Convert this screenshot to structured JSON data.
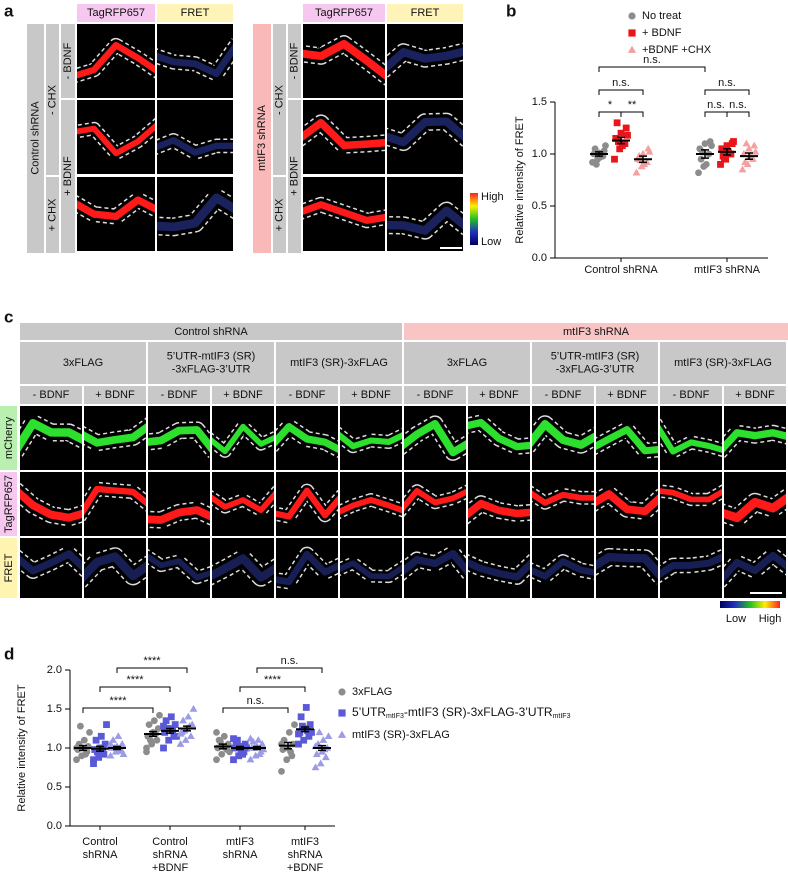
{
  "figure": {
    "panel_a": {
      "label": "a",
      "channels": [
        "TagRFP657",
        "FRET"
      ],
      "blocks": [
        {
          "name": "Control shRNA",
          "chx": [
            "- CHX",
            "+ CHX"
          ],
          "bdnf": [
            "- BDNF",
            "+ BDNF"
          ]
        },
        {
          "name": "mtIF3 shRNA",
          "chx": [
            "- CHX",
            "+ CHX"
          ],
          "bdnf": [
            "- BDNF",
            "+ BDNF"
          ]
        }
      ],
      "colorbar": [
        "High",
        "Low"
      ]
    },
    "panel_c": {
      "label": "c",
      "groups": [
        "Control shRNA",
        "mtIF3 shRNA"
      ],
      "constructs": [
        [
          "3xFLAG"
        ],
        [
          "5’UTR-mtIF3 (SR)",
          "-3xFLAG-3’UTR"
        ],
        [
          "mtIF3 (SR)-3xFLAG"
        ]
      ],
      "conditions": [
        "- BDNF",
        "+ BDNF"
      ],
      "channels": [
        "mCherry",
        "TagRFP657",
        "FRET"
      ],
      "colorbar": [
        "Low",
        "High"
      ]
    }
  },
  "chart_data": [
    {
      "type": "dot",
      "panel": "b",
      "ylabel": "Relative intensity of FRET",
      "categories": [
        "Control shRNA",
        "mtIF3 shRNA"
      ],
      "ylim": [
        0,
        1.5
      ],
      "yticks": [
        {
          "value": 0,
          "label": "0.0"
        },
        {
          "value": 0.5,
          "label": "0.5"
        },
        {
          "value": 1,
          "label": "1.0"
        },
        {
          "value": 1.5,
          "label": "1.5"
        }
      ],
      "series": [
        {
          "name": "No treat",
          "color": "#8c8c8c",
          "marker": "circle",
          "values": [
            1.0,
            1.0
          ],
          "errors": [
            0.02,
            0.04
          ],
          "points": [
            [
              0.92,
              0.95,
              0.98,
              1.0,
              1.01,
              1.03,
              1.05,
              0.97,
              1.08,
              0.9
            ],
            [
              0.82,
              0.88,
              1.0,
              1.05,
              1.1,
              1.12,
              0.95,
              0.9,
              1.08,
              1.02
            ]
          ]
        },
        {
          "name": "+ BDNF",
          "color": "#e8151b",
          "marker": "square",
          "values": [
            1.13,
            1.02
          ],
          "errors": [
            0.03,
            0.03
          ],
          "points": [
            [
              0.95,
              1.05,
              1.1,
              1.15,
              1.2,
              1.25,
              1.3,
              1.08,
              1.18,
              1.12
            ],
            [
              0.9,
              0.95,
              1.0,
              1.05,
              1.08,
              1.1,
              0.98,
              1.02,
              1.12,
              0.96
            ]
          ]
        },
        {
          "name": "+BDNF +CHX",
          "color": "#f4a0a0",
          "marker": "triangle",
          "values": [
            0.95,
            0.98
          ],
          "errors": [
            0.03,
            0.03
          ],
          "points": [
            [
              0.82,
              0.88,
              0.92,
              0.95,
              1.0,
              1.05,
              0.98,
              0.9,
              1.02,
              0.94
            ],
            [
              0.85,
              0.9,
              0.95,
              1.0,
              1.05,
              1.08,
              0.92,
              0.98,
              1.02,
              1.1
            ]
          ]
        }
      ],
      "annotations": [
        "n.s.",
        "n.s.",
        "n.s.",
        "*",
        "**",
        "n.s.",
        "n.s."
      ]
    },
    {
      "type": "dot",
      "panel": "d",
      "ylabel": "Relative intensity of FRET",
      "categories": [
        [
          "Control",
          "shRNA"
        ],
        [
          "Control",
          "shRNA",
          "+BDNF"
        ],
        [
          "mtIF3",
          "shRNA"
        ],
        [
          "mtIF3",
          "shRNA",
          "+BDNF"
        ]
      ],
      "ylim": [
        0,
        2
      ],
      "yticks": [
        {
          "value": 0,
          "label": "0.0"
        },
        {
          "value": 0.5,
          "label": "0.5"
        },
        {
          "value": 1,
          "label": "1.0"
        },
        {
          "value": 1.5,
          "label": "1.5"
        },
        {
          "value": 2,
          "label": "2.0"
        }
      ],
      "series": [
        {
          "name": "3xFLAG",
          "color": "#8c8c8c",
          "marker": "circle",
          "values": [
            1.0,
            1.18,
            1.02,
            1.03
          ],
          "errors": [
            0.03,
            0.03,
            0.03,
            0.04
          ],
          "points": [
            [
              0.85,
              0.9,
              0.95,
              0.98,
              1.0,
              1.02,
              1.05,
              1.1,
              1.2,
              1.28,
              0.92,
              1.0
            ],
            [
              0.95,
              1.05,
              1.1,
              1.15,
              1.2,
              1.25,
              1.3,
              1.35,
              1.42,
              1.1,
              1.18,
              1.0
            ],
            [
              0.85,
              0.92,
              0.98,
              1.0,
              1.02,
              1.05,
              1.1,
              1.15,
              0.95,
              1.08,
              1.0,
              1.2
            ],
            [
              0.7,
              0.85,
              0.9,
              0.98,
              1.0,
              1.05,
              1.1,
              1.2,
              1.3,
              1.0,
              0.95,
              1.05
            ]
          ]
        },
        {
          "name": [
            "5’UTR",
            "mtIF3",
            "-mtIF3 (SR)-3xFLAG-3’UTR",
            "mtIF3"
          ],
          "color": "#5a5ad8",
          "marker": "square",
          "values": [
            0.99,
            1.22,
            1.0,
            1.24
          ],
          "errors": [
            0.03,
            0.03,
            0.02,
            0.03
          ],
          "points": [
            [
              0.8,
              0.88,
              0.92,
              0.98,
              1.0,
              1.05,
              1.1,
              1.15,
              1.3,
              0.95,
              1.0,
              0.85
            ],
            [
              1.0,
              1.1,
              1.15,
              1.2,
              1.25,
              1.3,
              1.35,
              1.4,
              1.15,
              1.25,
              1.22,
              1.28
            ],
            [
              0.85,
              0.9,
              0.95,
              1.0,
              1.02,
              1.05,
              1.08,
              0.98,
              1.0,
              1.1,
              0.92,
              1.12
            ],
            [
              1.05,
              1.1,
              1.15,
              1.2,
              1.25,
              1.3,
              1.4,
              1.52,
              1.2,
              1.28,
              1.22,
              1.18
            ]
          ]
        },
        {
          "name": "mtIF3 (SR)-3xFLAG",
          "color": "#9c9ce4",
          "marker": "triangle",
          "values": [
            1.0,
            1.25,
            1.0,
            1.0
          ],
          "errors": [
            0.02,
            0.03,
            0.02,
            0.03
          ],
          "points": [
            [
              0.9,
              0.95,
              0.98,
              1.0,
              1.02,
              1.05,
              1.1,
              1.15,
              0.92,
              1.0,
              0.96,
              1.05
            ],
            [
              1.05,
              1.1,
              1.15,
              1.2,
              1.25,
              1.3,
              1.35,
              1.4,
              1.5,
              1.22,
              1.28,
              1.18
            ],
            [
              0.85,
              0.9,
              0.95,
              1.0,
              1.02,
              1.05,
              1.08,
              1.1,
              0.98,
              1.0,
              0.92,
              1.12
            ],
            [
              0.75,
              0.8,
              0.88,
              0.92,
              0.95,
              1.0,
              1.05,
              1.1,
              1.15,
              1.2,
              0.98,
              1.02
            ]
          ]
        }
      ],
      "annotations": [
        "****",
        "n.s.",
        "****",
        "****",
        "****",
        "n.s."
      ]
    }
  ]
}
